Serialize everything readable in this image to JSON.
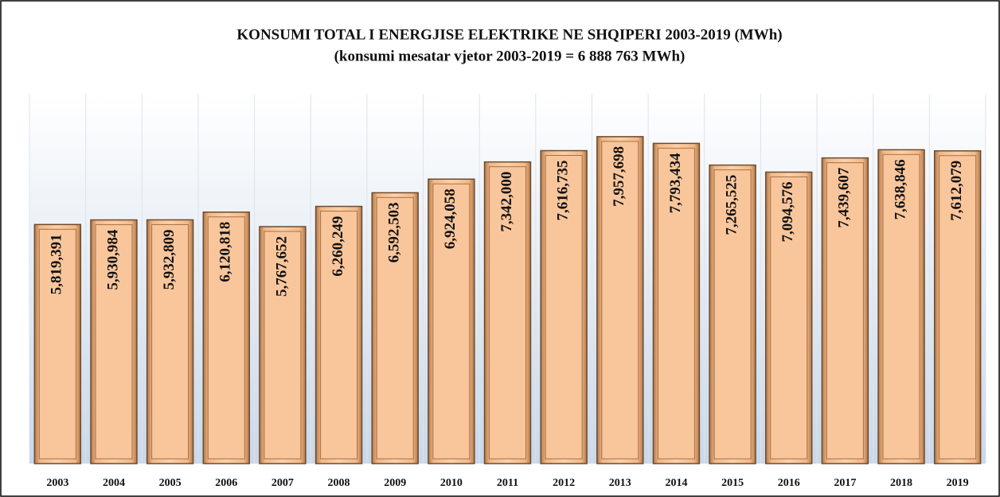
{
  "chart_data": {
    "type": "bar",
    "title": "KONSUMI TOTAL I ENERGJISE ELEKTRIKE  NE SHQIPERI  2003-2019  (MWh)",
    "subtitle": "(konsumi  mesatar vjetor 2003-2019 =  6 888 763 MWh)",
    "categories": [
      "2003",
      "2004",
      "2005",
      "2006",
      "2007",
      "2008",
      "2009",
      "2010",
      "2011",
      "2012",
      "2013",
      "2014",
      "2015",
      "2016",
      "2017",
      "2018",
      "2019"
    ],
    "values": [
      5819391,
      5930984,
      5932809,
      6120818,
      5767652,
      6260249,
      6592503,
      6924058,
      7342000,
      7616735,
      7957698,
      7793434,
      7265525,
      7094576,
      7439607,
      7638846,
      7612079
    ],
    "value_labels": [
      "5,819,391",
      "5,930,984",
      "5,932,809",
      "6,120,818",
      "5,767,652",
      "6,260,249",
      "6,592,503",
      "6,924,058",
      "7,342,000",
      "7,616,735",
      "7,957,698",
      "7,793,434",
      "7,265,525",
      "7,094,576",
      "7,439,607",
      "7,638,846",
      "7,612,079"
    ],
    "color": "#f9c69c",
    "ylim": [
      0,
      9000000
    ]
  }
}
